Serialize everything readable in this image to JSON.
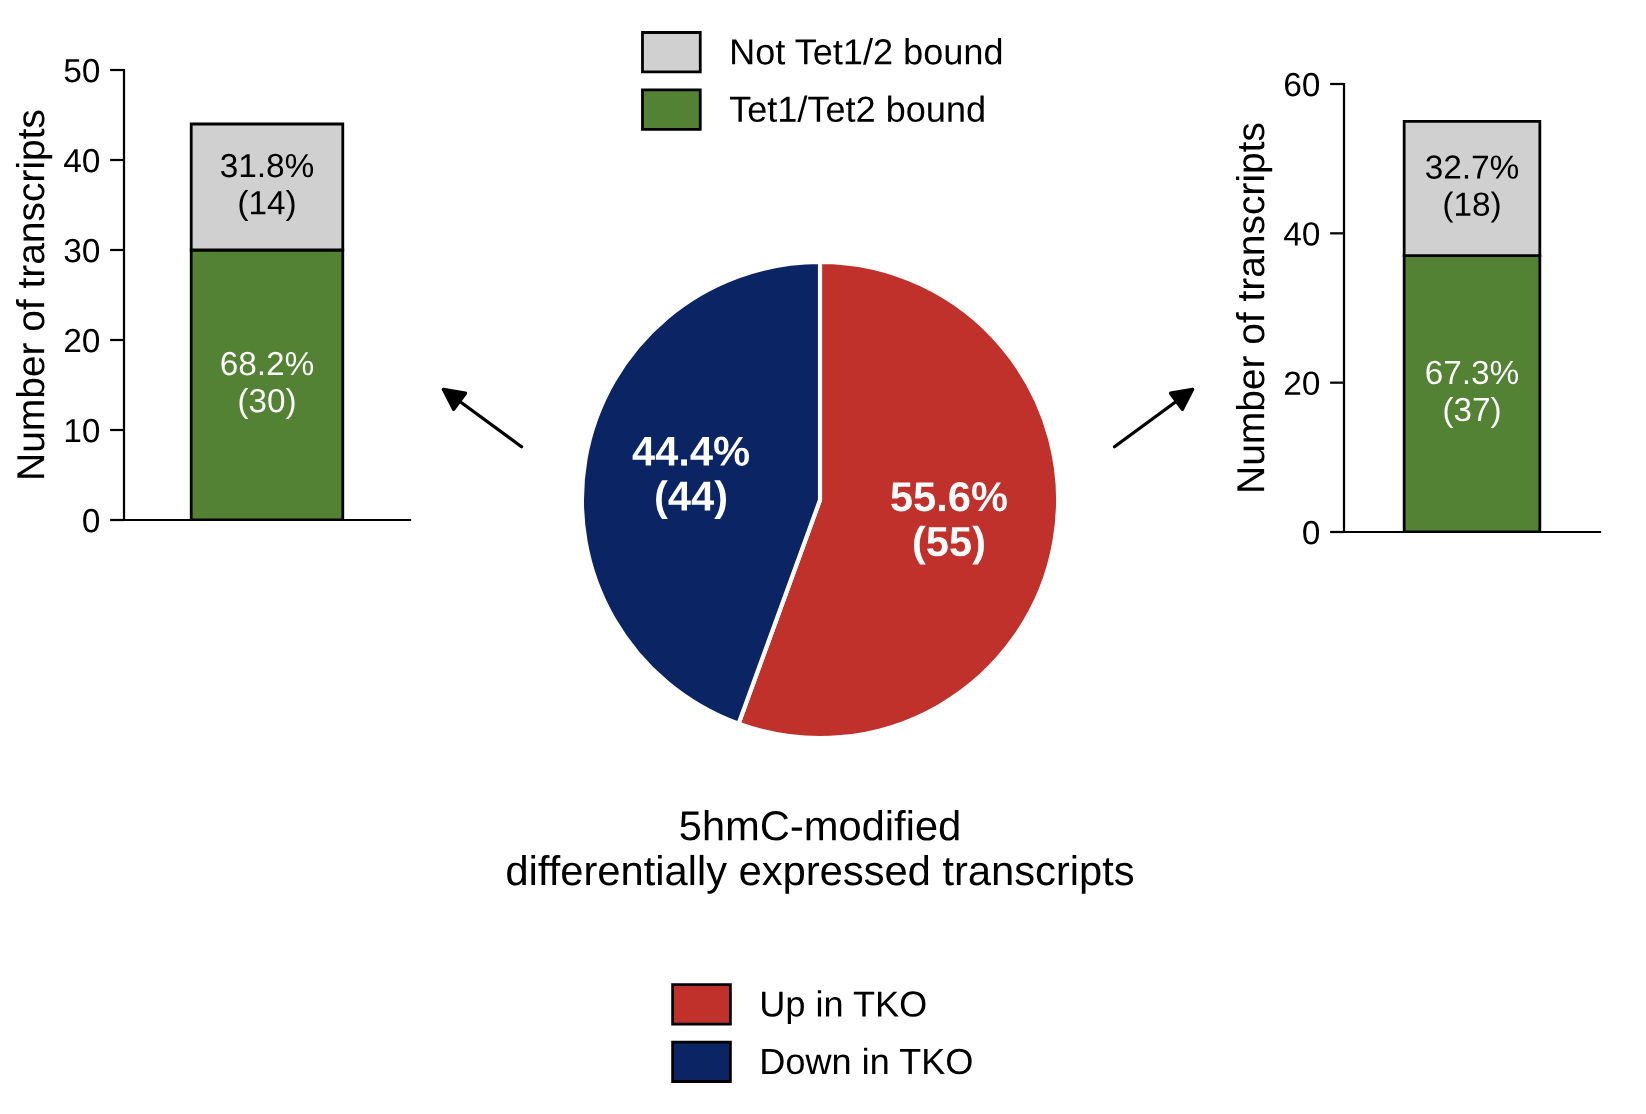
{
  "chart_data": [
    {
      "type": "bar",
      "stacked": true,
      "categories": [
        null
      ],
      "ylabel": "Number of transcripts",
      "ylim": [
        0,
        50
      ],
      "yticks": [
        0,
        10,
        20,
        30,
        40,
        50
      ],
      "legend": "top",
      "tick_labels": "y",
      "series": [
        {
          "name": "Tet1/Tet2 bound",
          "color": "#548235",
          "values": [
            30
          ],
          "value_labels": [
            "68.2%\n(30)"
          ]
        },
        {
          "name": "Not Tet1/2 bound",
          "color": "#d0d0d0",
          "values": [
            14
          ],
          "value_labels": [
            "31.8%\n(14)"
          ]
        }
      ]
    },
    {
      "type": "pie",
      "title": "5hmC-modified\ndifferentially expressed transcripts",
      "categories": [
        "Up in TKO",
        "Down in TKO"
      ],
      "values": [
        55,
        44
      ],
      "colors": [
        "#c0312b",
        "#0b2463"
      ],
      "value_labels": [
        "55.6%\n(55)",
        "44.4%\n(44)"
      ],
      "legend": "bottom"
    },
    {
      "type": "bar",
      "stacked": true,
      "categories": [
        null
      ],
      "ylabel": "Number of transcripts",
      "ylim": [
        0,
        60
      ],
      "yticks": [
        0,
        20,
        40,
        60
      ],
      "tick_labels": "y",
      "series": [
        {
          "color": "#548235",
          "values": [
            37
          ],
          "value_labels": [
            "67.3%\n(37)"
          ]
        },
        {
          "color": "#d0d0d0",
          "values": [
            18
          ],
          "value_labels": [
            "32.7%\n(18)"
          ]
        }
      ]
    }
  ]
}
